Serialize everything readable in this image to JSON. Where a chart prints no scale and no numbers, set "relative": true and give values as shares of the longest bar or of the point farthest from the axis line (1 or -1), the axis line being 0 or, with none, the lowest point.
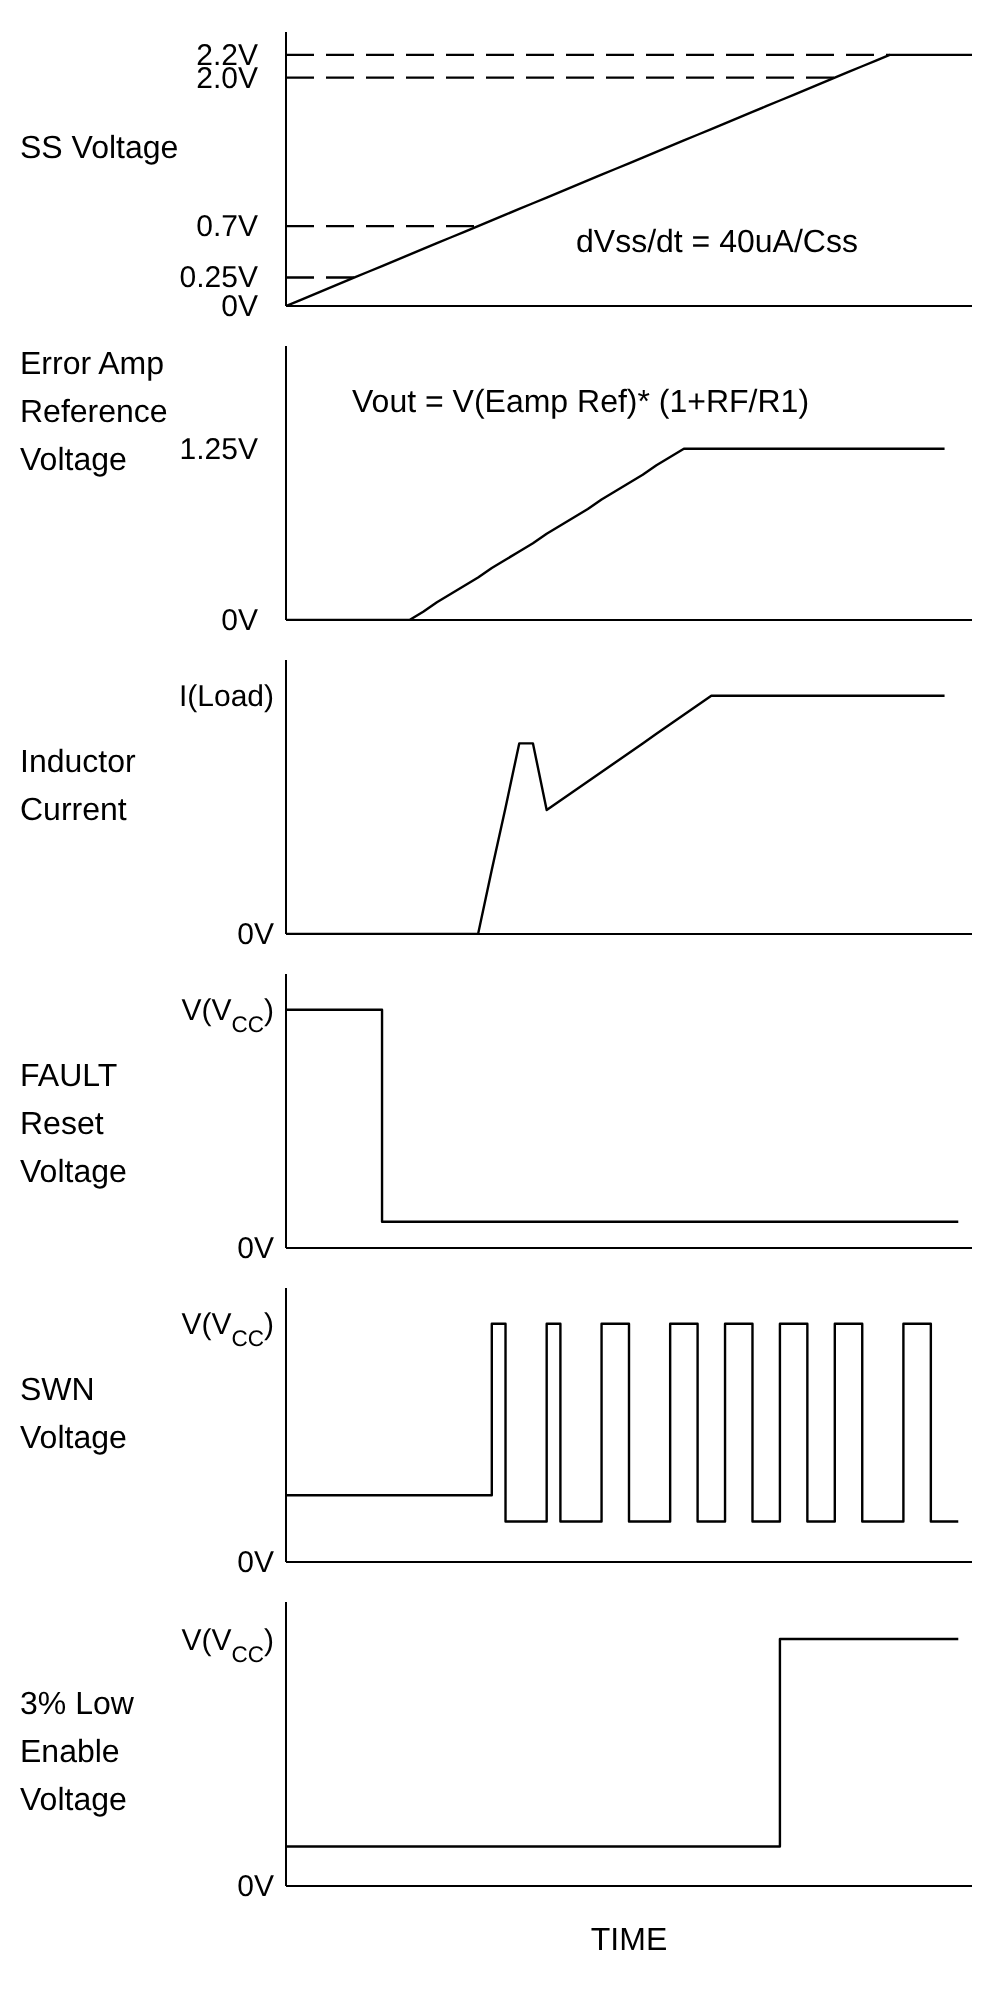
{
  "chart_data": [
    {
      "type": "line",
      "ylabel": "SS Voltage",
      "annotations": [
        "dVss/dt = 40uA/Css"
      ],
      "categories": [
        null,
        null,
        null,
        null,
        null,
        null,
        null,
        null,
        null,
        null,
        null,
        null,
        null,
        null,
        null,
        null,
        null,
        null,
        null,
        null,
        null,
        null,
        null,
        null,
        null,
        null,
        null,
        null,
        null,
        null,
        null,
        null,
        null,
        null,
        null,
        null,
        null,
        null,
        null,
        null,
        null,
        null,
        null,
        null,
        null,
        null,
        null,
        null,
        null,
        null,
        null
      ],
      "ylim": [
        0,
        2.4
      ],
      "yticks": [
        {
          "value": 0,
          "label": "0V"
        },
        {
          "value": 0.25,
          "label": "0.25V"
        },
        {
          "value": 0.7,
          "label": "0.7V"
        },
        {
          "value": 2.0,
          "label": "2.0V"
        },
        {
          "value": 2.2,
          "label": "2.2V"
        }
      ],
      "tick_labels": "y",
      "series": [
        {
          "color": "#000000",
          "values": [
            0,
            0.05,
            0.1,
            0.15,
            0.2,
            0.25,
            0.3,
            0.35,
            0.4,
            0.45,
            0.5,
            0.55,
            0.6,
            0.65,
            0.7,
            0.75,
            0.8,
            0.85,
            0.9,
            0.95,
            1,
            1.05,
            1.1,
            1.15,
            1.2,
            1.25,
            1.3,
            1.35,
            1.4,
            1.45,
            1.5,
            1.55,
            1.6,
            1.65,
            1.7,
            1.75,
            1.8,
            1.85,
            1.9,
            1.95,
            2,
            2.05,
            2.1,
            2.15,
            2.2,
            2.2,
            2.2,
            2.2,
            2.2,
            2.2,
            2.2
          ]
        },
        {
          "color": "#000000",
          "line_style": "dashed",
          "values": [
            2.2,
            2.2,
            2.2,
            2.2,
            2.2,
            2.2,
            2.2,
            2.2,
            2.2,
            2.2,
            2.2,
            2.2,
            2.2,
            2.2,
            2.2,
            2.2,
            2.2,
            2.2,
            2.2,
            2.2,
            2.2,
            2.2,
            2.2,
            2.2,
            2.2,
            2.2,
            2.2,
            2.2,
            2.2,
            2.2,
            2.2,
            2.2,
            2.2,
            2.2,
            2.2,
            2.2,
            2.2,
            2.2,
            2.2,
            2.2,
            2.2,
            2.2,
            2.2,
            2.2,
            2.2,
            null,
            null,
            null,
            null,
            null,
            null
          ]
        },
        {
          "color": "#000000",
          "line_style": "dashed",
          "values": [
            2,
            2,
            2,
            2,
            2,
            2,
            2,
            2,
            2,
            2,
            2,
            2,
            2,
            2,
            2,
            2,
            2,
            2,
            2,
            2,
            2,
            2,
            2,
            2,
            2,
            2,
            2,
            2,
            2,
            2,
            2,
            2,
            2,
            2,
            2,
            2,
            2,
            2,
            2,
            2,
            2,
            null,
            null,
            null,
            null,
            null,
            null,
            null,
            null,
            null,
            null
          ]
        },
        {
          "color": "#000000",
          "line_style": "dashed",
          "values": [
            0.7,
            0.7,
            0.7,
            0.7,
            0.7,
            0.7,
            0.7,
            0.7,
            0.7,
            0.7,
            0.7,
            0.7,
            0.7,
            0.7,
            0.7,
            null,
            null,
            null,
            null,
            null,
            null,
            null,
            null,
            null,
            null,
            null,
            null,
            null,
            null,
            null,
            null,
            null,
            null,
            null,
            null,
            null,
            null,
            null,
            null,
            null,
            null,
            null,
            null,
            null,
            null,
            null,
            null,
            null,
            null,
            null,
            null
          ]
        },
        {
          "color": "#000000",
          "line_style": "dashed",
          "values": [
            0.25,
            0.25,
            0.25,
            0.25,
            0.25,
            0.25,
            null,
            null,
            null,
            null,
            null,
            null,
            null,
            null,
            null,
            null,
            null,
            null,
            null,
            null,
            null,
            null,
            null,
            null,
            null,
            null,
            null,
            null,
            null,
            null,
            null,
            null,
            null,
            null,
            null,
            null,
            null,
            null,
            null,
            null,
            null,
            null,
            null,
            null,
            null,
            null,
            null,
            null,
            null,
            null,
            null
          ]
        }
      ]
    },
    {
      "type": "line",
      "ylabel": "Error Amp Reference Voltage",
      "annotations": [
        "Vout = V(Eamp Ref)* (1+RF/R1)"
      ],
      "categories": [
        null,
        null,
        null,
        null,
        null,
        null,
        null,
        null,
        null,
        null,
        null,
        null,
        null,
        null,
        null,
        null,
        null,
        null,
        null,
        null,
        null,
        null,
        null,
        null,
        null,
        null,
        null,
        null,
        null,
        null,
        null,
        null,
        null,
        null,
        null,
        null,
        null,
        null,
        null,
        null,
        null,
        null,
        null,
        null,
        null,
        null,
        null,
        null,
        null,
        null,
        null
      ],
      "ylim": [
        0,
        2
      ],
      "yticks": [
        {
          "value": 0,
          "label": "0V"
        },
        {
          "value": 1.25,
          "label": "1.25V"
        }
      ],
      "tick_labels": "y",
      "series": [
        {
          "color": "#000000",
          "values": [
            0,
            0,
            0,
            0,
            0,
            0,
            0,
            0,
            0,
            0,
            0.06,
            0.13,
            0.19,
            0.25,
            0.31,
            0.38,
            0.44,
            0.5,
            0.56,
            0.63,
            0.69,
            0.75,
            0.81,
            0.88,
            0.94,
            1,
            1.06,
            1.13,
            1.19,
            1.25,
            1.25,
            1.25,
            1.25,
            1.25,
            1.25,
            1.25,
            1.25,
            1.25,
            1.25,
            1.25,
            1.25,
            1.25,
            1.25,
            1.25,
            1.25,
            1.25,
            1.25,
            1.25,
            1.25,
            null,
            null
          ]
        }
      ]
    },
    {
      "type": "line",
      "ylabel": "Inductor Current",
      "categories": [
        null,
        null,
        null,
        null,
        null,
        null,
        null,
        null,
        null,
        null,
        null,
        null,
        null,
        null,
        null,
        null,
        null,
        null,
        null,
        null,
        null,
        null,
        null,
        null,
        null,
        null,
        null,
        null,
        null,
        null,
        null,
        null,
        null,
        null,
        null,
        null,
        null,
        null,
        null,
        null,
        null,
        null,
        null,
        null,
        null,
        null,
        null,
        null,
        null,
        null,
        null
      ],
      "relative": true,
      "annotations": [
        "I(Load)",
        "0V"
      ],
      "tick_labels": "y",
      "series": [
        {
          "color": "#000000",
          "values": [
            0,
            0,
            0,
            0,
            0,
            0,
            0,
            0,
            0,
            0,
            0,
            0,
            0,
            0,
            0,
            0.27,
            0.53,
            0.8,
            0.8,
            0.52,
            0.56,
            0.6,
            0.64,
            0.68,
            0.72,
            0.76,
            0.8,
            0.84,
            0.88,
            0.92,
            0.96,
            1,
            1,
            1,
            1,
            1,
            1,
            1,
            1,
            1,
            1,
            1,
            1,
            1,
            1,
            1,
            1,
            1,
            1,
            null,
            null
          ]
        }
      ]
    },
    {
      "type": "step",
      "ylabel": "FAULT Reset Voltage",
      "categories": [
        null,
        null,
        null,
        null,
        null,
        null,
        null,
        null,
        null,
        null,
        null,
        null,
        null,
        null,
        null,
        null,
        null,
        null,
        null,
        null,
        null,
        null,
        null,
        null,
        null,
        null,
        null,
        null,
        null,
        null,
        null,
        null,
        null,
        null,
        null,
        null,
        null,
        null,
        null,
        null,
        null,
        null,
        null,
        null,
        null,
        null,
        null,
        null,
        null,
        null,
        null
      ],
      "relative": true,
      "annotations": [
        "V(V$_{CC}$)",
        "0V"
      ],
      "tick_labels": "y",
      "series": [
        {
          "color": "#000000",
          "values": [
            1,
            1,
            1,
            1,
            1,
            1,
            1,
            0.11,
            0.11,
            0.11,
            0.11,
            0.11,
            0.11,
            0.11,
            0.11,
            0.11,
            0.11,
            0.11,
            0.11,
            0.11,
            0.11,
            0.11,
            0.11,
            0.11,
            0.11,
            0.11,
            0.11,
            0.11,
            0.11,
            0.11,
            0.11,
            0.11,
            0.11,
            0.11,
            0.11,
            0.11,
            0.11,
            0.11,
            0.11,
            0.11,
            0.11,
            0.11,
            0.11,
            0.11,
            0.11,
            0.11,
            0.11,
            0.11,
            0.11,
            0.11,
            null
          ]
        }
      ]
    },
    {
      "type": "step",
      "ylabel": "SWN Voltage",
      "categories": [
        null,
        null,
        null,
        null,
        null,
        null,
        null,
        null,
        null,
        null,
        null,
        null,
        null,
        null,
        null,
        null,
        null,
        null,
        null,
        null,
        null,
        null,
        null,
        null,
        null,
        null,
        null,
        null,
        null,
        null,
        null,
        null,
        null,
        null,
        null,
        null,
        null,
        null,
        null,
        null,
        null,
        null,
        null,
        null,
        null,
        null,
        null,
        null,
        null,
        null,
        null
      ],
      "relative": true,
      "annotations": [
        "V(V$_{CC}$)",
        "0V"
      ],
      "tick_labels": "y",
      "series": [
        {
          "color": "#000000",
          "values": [
            0.28,
            0.28,
            0.28,
            0.28,
            0.28,
            0.28,
            0.28,
            0.28,
            0.28,
            0.28,
            0.28,
            0.28,
            0.28,
            0.28,
            0.28,
            1,
            0.17,
            0.17,
            0.17,
            1,
            0.17,
            0.17,
            0.17,
            1,
            1,
            0.17,
            0.17,
            0.17,
            1,
            1,
            0.17,
            0.17,
            1,
            1,
            0.17,
            0.17,
            1,
            1,
            0.17,
            0.17,
            1,
            1,
            0.17,
            0.17,
            0.17,
            1,
            1,
            0.17,
            0.17,
            0.17,
            null
          ]
        }
      ]
    },
    {
      "type": "step",
      "ylabel": "3% Low Enable Voltage",
      "xlabel": "TIME",
      "categories": [
        null,
        null,
        null,
        null,
        null,
        null,
        null,
        null,
        null,
        null,
        null,
        null,
        null,
        null,
        null,
        null,
        null,
        null,
        null,
        null,
        null,
        null,
        null,
        null,
        null,
        null,
        null,
        null,
        null,
        null,
        null,
        null,
        null,
        null,
        null,
        null,
        null,
        null,
        null,
        null,
        null,
        null,
        null,
        null,
        null,
        null,
        null,
        null,
        null,
        null,
        null
      ],
      "relative": true,
      "annotations": [
        "V(V$_{CC}$)",
        "0V"
      ],
      "tick_labels": "y",
      "series": [
        {
          "color": "#000000",
          "values": [
            0.16,
            0.16,
            0.16,
            0.16,
            0.16,
            0.16,
            0.16,
            0.16,
            0.16,
            0.16,
            0.16,
            0.16,
            0.16,
            0.16,
            0.16,
            0.16,
            0.16,
            0.16,
            0.16,
            0.16,
            0.16,
            0.16,
            0.16,
            0.16,
            0.16,
            0.16,
            0.16,
            0.16,
            0.16,
            0.16,
            0.16,
            0.16,
            0.16,
            0.16,
            0.16,
            0.16,
            1,
            1,
            1,
            1,
            1,
            1,
            1,
            1,
            1,
            1,
            1,
            1,
            1,
            1,
            null
          ]
        }
      ]
    }
  ]
}
